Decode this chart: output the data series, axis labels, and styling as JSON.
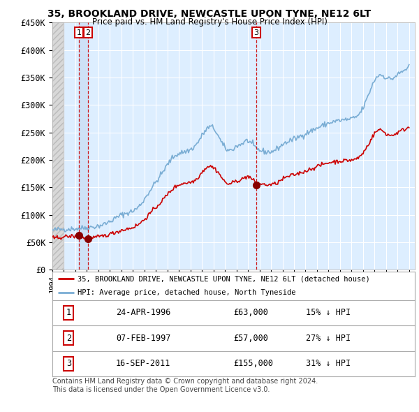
{
  "title": "35, BROOKLAND DRIVE, NEWCASTLE UPON TYNE, NE12 6LT",
  "subtitle": "Price paid vs. HM Land Registry's House Price Index (HPI)",
  "ylim": [
    0,
    450000
  ],
  "yticks": [
    0,
    50000,
    100000,
    150000,
    200000,
    250000,
    300000,
    350000,
    400000,
    450000
  ],
  "ytick_labels": [
    "£0",
    "£50K",
    "£100K",
    "£150K",
    "£200K",
    "£250K",
    "£300K",
    "£350K",
    "£400K",
    "£450K"
  ],
  "xlim_start": 1994.0,
  "xlim_end": 2025.5,
  "sales": [
    {
      "date_num": 1996.3,
      "price": 63000,
      "label": "1"
    },
    {
      "date_num": 1997.1,
      "price": 57000,
      "label": "2"
    },
    {
      "date_num": 2011.71,
      "price": 155000,
      "label": "3"
    }
  ],
  "sale_color": "#cc0000",
  "hpi_color": "#7aadd4",
  "vline_color": "#cc0000",
  "plot_bg": "#ddeeff",
  "grid_color": "#ffffff",
  "hatch_color": "#c8c8c8",
  "highlight_color": "#ccdff5",
  "legend_entries": [
    "35, BROOKLAND DRIVE, NEWCASTLE UPON TYNE, NE12 6LT (detached house)",
    "HPI: Average price, detached house, North Tyneside"
  ],
  "table_rows": [
    {
      "num": "1",
      "date": "24-APR-1996",
      "price": "£63,000",
      "pct": "15% ↓ HPI"
    },
    {
      "num": "2",
      "date": "07-FEB-1997",
      "price": "£57,000",
      "pct": "27% ↓ HPI"
    },
    {
      "num": "3",
      "date": "16-SEP-2011",
      "price": "£155,000",
      "pct": "31% ↓ HPI"
    }
  ],
  "footer": "Contains HM Land Registry data © Crown copyright and database right 2024.\nThis data is licensed under the Open Government Licence v3.0."
}
